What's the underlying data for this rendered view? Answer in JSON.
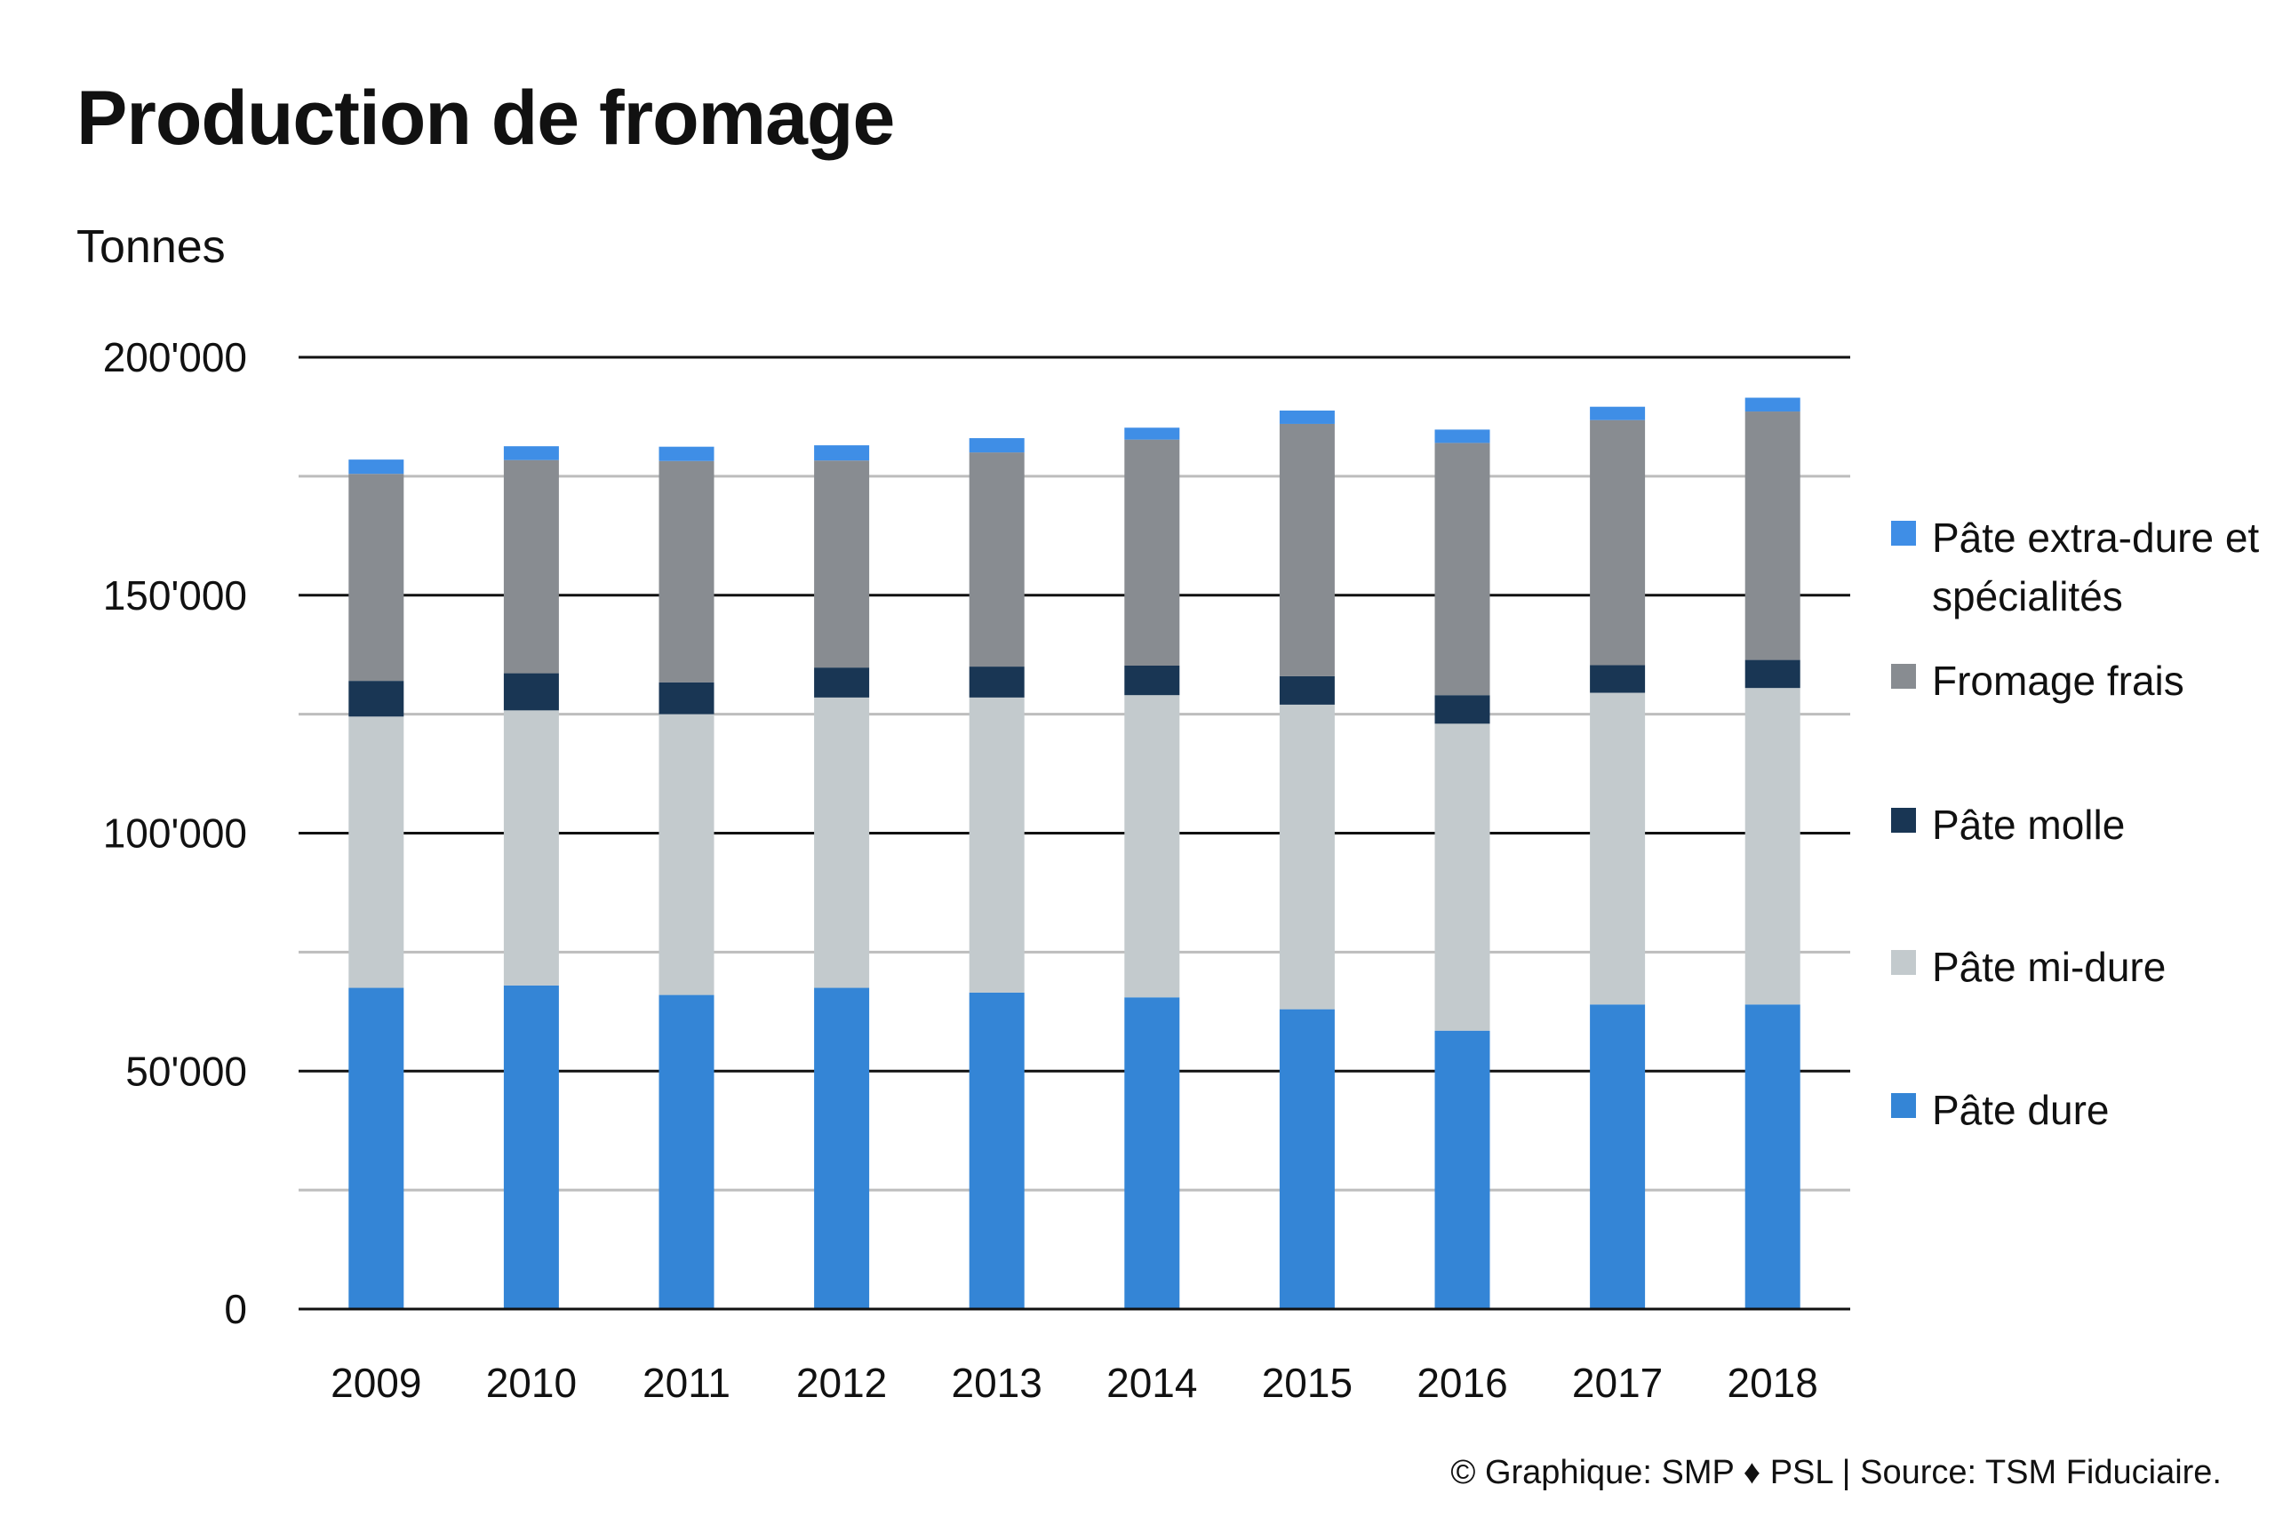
{
  "title": "Production de fromage",
  "unit_label": "Tonnes",
  "footer": "© Graphique: SMP ♦ PSL | Source: TSM Fiduciaire.",
  "colors": {
    "pate_dure": "#3485d6",
    "pate_mi_dure": "#c3cacd",
    "pate_molle": "#193654",
    "fromage_frais": "#888c91",
    "pate_extra_dure": "#3f8ee6",
    "grid_major": "#111111",
    "grid_minor": "#bdbdbd"
  },
  "chart_data": {
    "type": "bar",
    "stacked": true,
    "title": "Production de fromage",
    "ylabel": "Tonnes",
    "xlabel": "",
    "ylim": [
      0,
      200000
    ],
    "y_ticks": [
      0,
      50000,
      100000,
      150000,
      200000
    ],
    "y_tick_labels": [
      "0",
      "50'000",
      "100'000",
      "150'000",
      "200'000"
    ],
    "minor_gridlines": [
      25000,
      75000,
      125000,
      175000
    ],
    "grid": true,
    "legend_position": "right",
    "categories": [
      "2009",
      "2010",
      "2011",
      "2012",
      "2013",
      "2014",
      "2015",
      "2016",
      "2017",
      "2018"
    ],
    "series": [
      {
        "name": "Pâte dure",
        "color": "#3485d6",
        "values": [
          67500,
          68000,
          66000,
          67500,
          66500,
          65500,
          63000,
          58500,
          64000,
          64000
        ]
      },
      {
        "name": "Pâte mi-dure",
        "color": "#c3cacd",
        "values": [
          57000,
          57800,
          59000,
          61000,
          62000,
          63500,
          64000,
          64500,
          65500,
          66500
        ]
      },
      {
        "name": "Pâte molle",
        "color": "#193654",
        "values": [
          7500,
          7800,
          6700,
          6300,
          6500,
          6200,
          6000,
          6000,
          5800,
          5900
        ]
      },
      {
        "name": "Fromage frais",
        "color": "#888c91",
        "values": [
          43500,
          44800,
          46500,
          43500,
          45000,
          47500,
          53000,
          53000,
          51500,
          52200
        ]
      },
      {
        "name": "Pâte extra-dure et spécialités",
        "color": "#3f8ee6",
        "values": [
          3000,
          2900,
          3000,
          3200,
          3000,
          2500,
          2800,
          2800,
          2800,
          2900
        ]
      }
    ]
  }
}
